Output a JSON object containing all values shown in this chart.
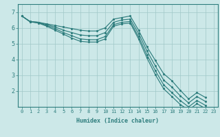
{
  "xlabel": "Humidex (Indice chaleur)",
  "bg_color": "#cce8e8",
  "line_color": "#2e7d7d",
  "grid_color": "#a0c8c8",
  "axis_color": "#2e7d7d",
  "xlim": [
    -0.5,
    23.5
  ],
  "ylim": [
    1.0,
    7.5
  ],
  "xticks": [
    0,
    1,
    2,
    3,
    4,
    5,
    6,
    7,
    8,
    9,
    10,
    11,
    12,
    13,
    14,
    15,
    16,
    17,
    18,
    19,
    20,
    21,
    22,
    23
  ],
  "yticks": [
    2,
    3,
    4,
    5,
    6,
    7
  ],
  "lines": [
    [
      6.75,
      6.4,
      6.35,
      6.25,
      6.15,
      6.05,
      5.95,
      5.85,
      5.8,
      5.8,
      6.0,
      6.55,
      6.65,
      6.75,
      5.85,
      4.8,
      3.95,
      3.1,
      2.65,
      2.05,
      1.5,
      1.9,
      1.6
    ],
    [
      6.75,
      6.4,
      6.35,
      6.2,
      6.05,
      5.85,
      5.7,
      5.55,
      5.5,
      5.5,
      5.7,
      6.35,
      6.5,
      6.55,
      5.65,
      4.55,
      3.6,
      2.7,
      2.25,
      1.7,
      1.25,
      1.65,
      1.35
    ],
    [
      6.75,
      6.38,
      6.32,
      6.15,
      5.95,
      5.7,
      5.5,
      5.3,
      5.25,
      5.25,
      5.45,
      6.2,
      6.35,
      6.4,
      5.45,
      4.3,
      3.3,
      2.4,
      1.9,
      1.4,
      1.0,
      1.4,
      1.1
    ],
    [
      6.75,
      6.38,
      6.3,
      6.1,
      5.85,
      5.6,
      5.35,
      5.15,
      5.1,
      5.1,
      5.3,
      6.1,
      6.25,
      6.3,
      5.3,
      4.1,
      3.05,
      2.15,
      1.65,
      1.15,
      0.8,
      1.2,
      0.9
    ]
  ]
}
